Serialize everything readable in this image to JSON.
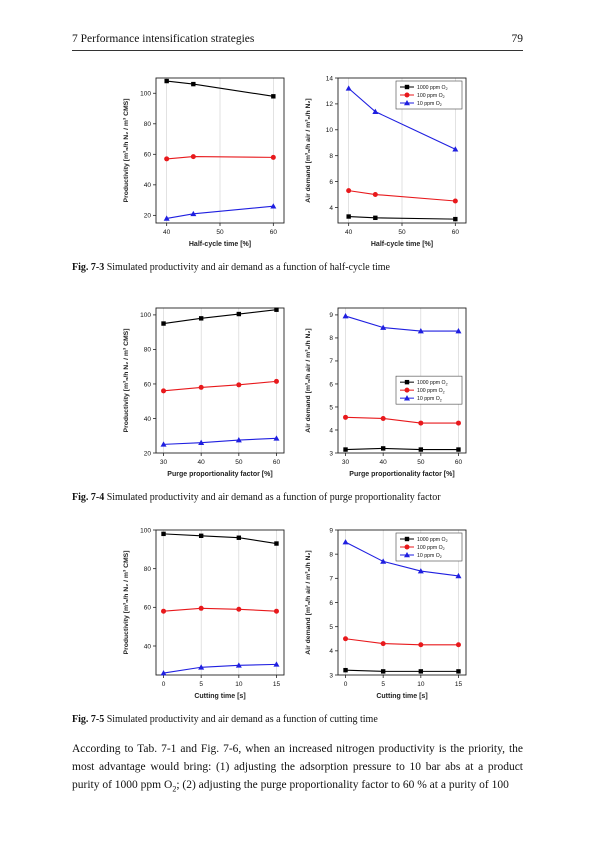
{
  "header": {
    "chapter": "7 Performance intensification strategies",
    "page_number": "79"
  },
  "figures": [
    {
      "id": "fig-7-3",
      "caption_label": "Fig. 7-3",
      "caption_text": "Simulated productivity and air demand as a function of half-cycle time"
    },
    {
      "id": "fig-7-4",
      "caption_label": "Fig. 7-4",
      "caption_text": "Simulated productivity and air demand as a function of purge proportionality factor"
    },
    {
      "id": "fig-7-5",
      "caption_label": "Fig. 7-5",
      "caption_text": "Simulated productivity and air demand as a function of cutting time"
    }
  ],
  "body_text": {
    "line1": "According to Tab. 7-1 and Fig. 7-6, when an increased nitrogen productivity is the priority, the",
    "line2": "most advantage would bring: (1) adjusting the adsorption pressure to 10 bar abs at a product",
    "line3_prefix": "purity of 1000 ppm O",
    "line3_sub": "2",
    "line3_suffix": "; (2) adjusting the purge proportionality factor to 60 % at a purity of 100"
  },
  "series_colors": {
    "1000 ppm O2": "#000000",
    "100 ppm O2": "#e8191c",
    "10 ppm O2": "#1f1fe0"
  },
  "chart_data": [
    {
      "type": "line",
      "panel": "fig-7-3-productivity",
      "xlabel": "Half-cycle time [%]",
      "ylabel": "Productivity [m³ₙ/h N₂ / m³ CMS]",
      "x": [
        40,
        45,
        60
      ],
      "xlim": [
        38,
        62
      ],
      "ylim": [
        15,
        110
      ],
      "xticks": [
        40,
        50,
        60
      ],
      "yticks": [
        20,
        40,
        60,
        80,
        100
      ],
      "legend": null,
      "series": [
        {
          "name": "1000 ppm O2",
          "color": "#000000",
          "marker": "square",
          "values": [
            108,
            106,
            98
          ]
        },
        {
          "name": "100 ppm O2",
          "color": "#e8191c",
          "marker": "circle",
          "values": [
            57,
            58.5,
            58
          ]
        },
        {
          "name": "10 ppm O2",
          "color": "#1f1fe0",
          "marker": "triangle",
          "values": [
            18,
            21,
            26
          ]
        }
      ]
    },
    {
      "type": "line",
      "panel": "fig-7-3-air-demand",
      "xlabel": "Half-cycle time [%]",
      "ylabel": "Air demand [m³ₙ/h air / m³ₙ/h N₂]",
      "x": [
        40,
        45,
        60
      ],
      "xlim": [
        38,
        62
      ],
      "ylim": [
        2.8,
        14
      ],
      "xticks": [
        40,
        50,
        60
      ],
      "yticks": [
        4,
        6,
        8,
        10,
        12,
        14
      ],
      "legend": "top-right",
      "legend_labels": [
        "1000 ppm O",
        "100 ppm O",
        "10 ppm O"
      ],
      "series": [
        {
          "name": "1000 ppm O2",
          "color": "#000000",
          "marker": "square",
          "values": [
            3.3,
            3.2,
            3.1
          ]
        },
        {
          "name": "100 ppm O2",
          "color": "#e8191c",
          "marker": "circle",
          "values": [
            5.3,
            5.0,
            4.5
          ]
        },
        {
          "name": "10 ppm O2",
          "color": "#1f1fe0",
          "marker": "triangle",
          "values": [
            13.2,
            11.4,
            8.5
          ]
        }
      ]
    },
    {
      "type": "line",
      "panel": "fig-7-4-productivity",
      "xlabel": "Purge proportionality factor [%]",
      "ylabel": "Productivity [m³ₙ/h N₂ / m³ CMS]",
      "x": [
        30,
        40,
        50,
        60
      ],
      "xlim": [
        28,
        62
      ],
      "ylim": [
        20,
        104
      ],
      "xticks": [
        30,
        40,
        50,
        60
      ],
      "yticks": [
        20,
        40,
        60,
        80,
        100
      ],
      "legend": null,
      "series": [
        {
          "name": "1000 ppm O2",
          "color": "#000000",
          "marker": "square",
          "values": [
            95,
            98,
            100.5,
            103
          ]
        },
        {
          "name": "100 ppm O2",
          "color": "#e8191c",
          "marker": "circle",
          "values": [
            56,
            58,
            59.5,
            61.5
          ]
        },
        {
          "name": "10 ppm O2",
          "color": "#1f1fe0",
          "marker": "triangle",
          "values": [
            25,
            26,
            27.5,
            28.5
          ]
        }
      ]
    },
    {
      "type": "line",
      "panel": "fig-7-4-air-demand",
      "xlabel": "Purge proportionality factor [%]",
      "ylabel": "Air demand [m³ₙ/h air / m³ₙ/h N₂]",
      "x": [
        30,
        40,
        50,
        60
      ],
      "xlim": [
        28,
        62
      ],
      "ylim": [
        3,
        9.3
      ],
      "xticks": [
        30,
        40,
        50,
        60
      ],
      "yticks": [
        3,
        4,
        5,
        6,
        7,
        8,
        9
      ],
      "legend": "center-right",
      "legend_labels": [
        "1000 ppm O",
        "100 ppm O",
        "10 ppm O"
      ],
      "series": [
        {
          "name": "1000 ppm O2",
          "color": "#000000",
          "marker": "square",
          "values": [
            3.15,
            3.2,
            3.15,
            3.15
          ]
        },
        {
          "name": "100 ppm O2",
          "color": "#e8191c",
          "marker": "circle",
          "values": [
            4.55,
            4.5,
            4.3,
            4.3
          ]
        },
        {
          "name": "10 ppm O2",
          "color": "#1f1fe0",
          "marker": "triangle",
          "values": [
            8.95,
            8.45,
            8.3,
            8.3
          ]
        }
      ]
    },
    {
      "type": "line",
      "panel": "fig-7-5-productivity",
      "xlabel": "Cutting time [s]",
      "ylabel": "Productivity [m³ₙ/h N₂ / m³ CMS]",
      "x": [
        0,
        5,
        10,
        15
      ],
      "xlim": [
        -1,
        16
      ],
      "ylim": [
        25,
        100
      ],
      "xticks": [
        0,
        5,
        10,
        15
      ],
      "yticks": [
        40,
        60,
        80,
        100
      ],
      "legend": null,
      "series": [
        {
          "name": "1000 ppm O2",
          "color": "#000000",
          "marker": "square",
          "values": [
            98,
            97,
            96,
            93
          ]
        },
        {
          "name": "100 ppm O2",
          "color": "#e8191c",
          "marker": "circle",
          "values": [
            58,
            59.5,
            59,
            58
          ]
        },
        {
          "name": "10 ppm O2",
          "color": "#1f1fe0",
          "marker": "triangle",
          "values": [
            26,
            29,
            30,
            30.5
          ]
        }
      ]
    },
    {
      "type": "line",
      "panel": "fig-7-5-air-demand",
      "xlabel": "Cutting time [s]",
      "ylabel": "Air demand [m³ₙ/h air / m³ₙ/h N₂]",
      "x": [
        0,
        5,
        10,
        15
      ],
      "xlim": [
        -1,
        16
      ],
      "ylim": [
        3,
        9
      ],
      "xticks": [
        0,
        5,
        10,
        15
      ],
      "yticks": [
        3,
        4,
        5,
        6,
        7,
        8,
        9
      ],
      "legend": "top-right",
      "legend_labels": [
        "1000 ppm O",
        "100 ppm O",
        "10 ppm O"
      ],
      "series": [
        {
          "name": "1000 ppm O2",
          "color": "#000000",
          "marker": "square",
          "values": [
            3.2,
            3.15,
            3.15,
            3.15
          ]
        },
        {
          "name": "100 ppm O2",
          "color": "#e8191c",
          "marker": "circle",
          "values": [
            4.5,
            4.3,
            4.25,
            4.25
          ]
        },
        {
          "name": "10 ppm O2",
          "color": "#1f1fe0",
          "marker": "triangle",
          "values": [
            8.5,
            7.7,
            7.3,
            7.1
          ]
        }
      ]
    }
  ]
}
